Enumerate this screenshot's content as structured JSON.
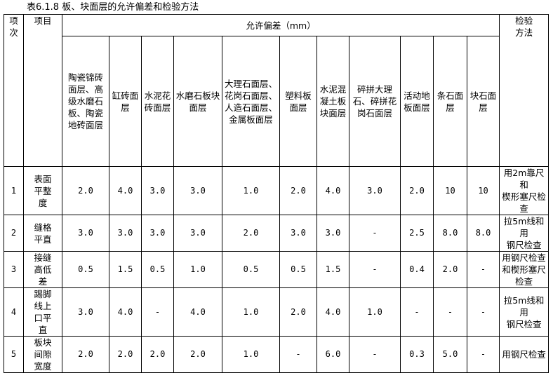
{
  "title": "表6.1.8 板、块面层的允许偏差和检验方法",
  "header": {
    "index": "项\n次",
    "item": "项目",
    "tolerance": "允许偏差（mm）",
    "method": "检验\n方法",
    "columns": [
      "陶瓷锦砖\n面层、高\n级水磨石\n板、陶瓷\n地砖面层",
      "缸砖面\n层",
      "水泥花\n砖面层",
      "水磨石板块\n面层",
      "大理石面层、\n花岗石面层、\n人造石面层、\n金属板面层",
      "塑料板\n面层",
      "水泥混\n凝土板\n块面层",
      "碎拼大理\n石、碎拼花\n岗石面层",
      "活动地\n板面层",
      "条石面\n层",
      "块石面\n层"
    ]
  },
  "rows": [
    {
      "index": "1",
      "item": "表面\n平整\n度",
      "values": [
        "2.0",
        "4.0",
        "3.0",
        "3.0",
        "1.0",
        "2.0",
        "4.0",
        "3.0",
        "2.0",
        "10",
        "10"
      ],
      "method": "用2m靠尺和\n楔形塞尺检\n查"
    },
    {
      "index": "2",
      "item": "缝格\n平直",
      "values": [
        "3.0",
        "3.0",
        "3.0",
        "3.0",
        "2.0",
        "3.0",
        "3.0",
        "-",
        "2.5",
        "8.0",
        "8.0"
      ],
      "method": "拉5m线和用\n钢尺检查"
    },
    {
      "index": "3",
      "item": "接缝\n高低\n差",
      "values": [
        "0.5",
        "1.5",
        "0.5",
        "1.0",
        "0.5",
        "0.5",
        "1.5",
        "-",
        "0.4",
        "2.0",
        "-"
      ],
      "method": "用钢尺检查\n和楔形塞尺\n检查"
    },
    {
      "index": "4",
      "item": "踢脚\n线上\n口平\n直",
      "values": [
        "3.0",
        "4.0",
        "-",
        "4.0",
        "1.0",
        "2.0",
        "4.0",
        "1.0",
        "-",
        "-",
        "-"
      ],
      "method": "拉5m线和用\n钢尺检查"
    },
    {
      "index": "5",
      "item": "板块\n间隙\n宽度",
      "values": [
        "2.0",
        "2.0",
        "2.0",
        "2.0",
        "1.0",
        "-",
        "6.0",
        "-",
        "0.3",
        "5.0",
        "-"
      ],
      "method": "用钢尺检查"
    }
  ]
}
